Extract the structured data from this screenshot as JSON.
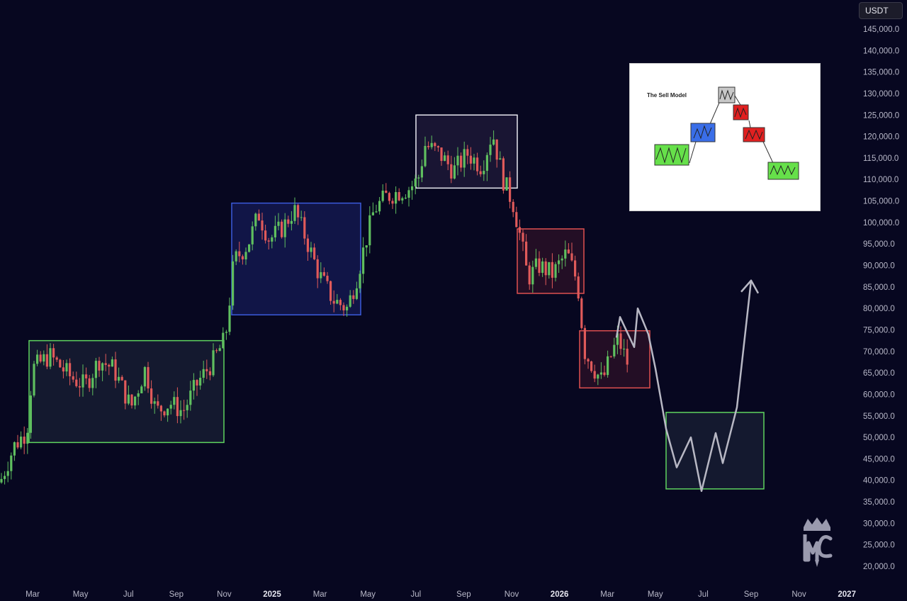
{
  "currency": "USDT",
  "chart_data": {
    "type": "candlestick",
    "y_ticks": [
      "145,000.0",
      "140,000.0",
      "135,000.0",
      "130,000.0",
      "125,000.0",
      "120,000.0",
      "115,000.0",
      "110,000.0",
      "105,000.0",
      "100,000.0",
      "95,000.0",
      "90,000.0",
      "85,000.0",
      "80,000.0",
      "75,000.0",
      "70,000.0",
      "65,000.0",
      "60,000.0",
      "55,000.0",
      "50,000.0",
      "45,000.0",
      "40,000.0",
      "35,000.0",
      "30,000.0",
      "25,000.0",
      "20,000.0"
    ],
    "ylim": [
      15000,
      150000
    ],
    "x_ticks": [
      {
        "label": "Mar",
        "bold": false
      },
      {
        "label": "May",
        "bold": false
      },
      {
        "label": "Jul",
        "bold": false
      },
      {
        "label": "Sep",
        "bold": false
      },
      {
        "label": "Nov",
        "bold": false
      },
      {
        "label": "2025",
        "bold": true
      },
      {
        "label": "Mar",
        "bold": false
      },
      {
        "label": "May",
        "bold": false
      },
      {
        "label": "Jul",
        "bold": false
      },
      {
        "label": "Sep",
        "bold": false
      },
      {
        "label": "Nov",
        "bold": false
      },
      {
        "label": "2026",
        "bold": true
      },
      {
        "label": "Mar",
        "bold": false
      },
      {
        "label": "May",
        "bold": false
      },
      {
        "label": "Jul",
        "bold": false
      },
      {
        "label": "Sep",
        "bold": false
      },
      {
        "label": "Nov",
        "bold": false
      },
      {
        "label": "2027",
        "bold": true
      }
    ],
    "zones": [
      {
        "name": "accumulation-range-2024",
        "color": "#5fd35f",
        "from": "Mar 2024",
        "to": "Nov 2024",
        "low": 48800,
        "high": 72500
      },
      {
        "name": "markup-range-2025",
        "color": "#3b5bdb",
        "from": "Jan 2025",
        "to": "Apr 2025",
        "low": 78500,
        "high": 104500
      },
      {
        "name": "distribution-range-2025",
        "color": "#e8e8f0",
        "from": "Jul 2025",
        "to": "Oct 2025",
        "low": 108000,
        "high": 125000
      },
      {
        "name": "markdown-range-1",
        "color": "#e05050",
        "from": "Nov 2025",
        "to": "Jan 2026",
        "low": 83500,
        "high": 98500
      },
      {
        "name": "markdown-range-2",
        "color": "#e05050",
        "from": "Feb 2026",
        "to": "Apr 2026",
        "low": 61500,
        "high": 74800
      },
      {
        "name": "projected-reaccumulation",
        "color": "#5fd35f",
        "from": "Jun 2026",
        "to": "Sep 2026",
        "low": 38000,
        "high": 55800
      }
    ],
    "projection_path": [
      [
        73200,
        870
      ],
      [
        78000,
        875
      ],
      [
        71000,
        895
      ],
      [
        80000,
        900
      ],
      [
        74000,
        915
      ],
      [
        66000,
        925
      ],
      [
        52000,
        940
      ],
      [
        43000,
        955
      ],
      [
        50000,
        975
      ],
      [
        37500,
        990
      ],
      [
        51000,
        1010
      ],
      [
        44000,
        1020
      ],
      [
        57000,
        1040
      ],
      [
        86500,
        1060
      ]
    ]
  },
  "inset": {
    "title": "The Sell Model"
  },
  "colors": {
    "up": "#5fbf5f",
    "down": "#e05a5a",
    "projection": "#b8b8c4"
  }
}
